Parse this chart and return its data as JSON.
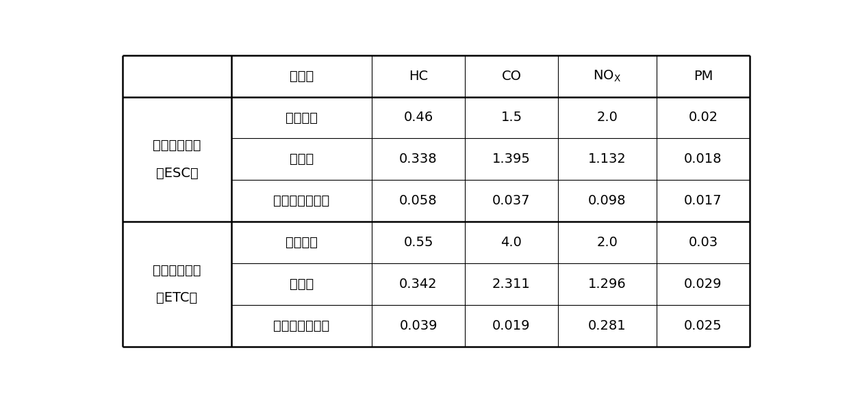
{
  "header_row": [
    "排放物",
    "HC",
    "CO",
    "NOₓ",
    "PM"
  ],
  "section1_label_line1": "稳态测试循环",
  "section1_label_line2": "（ESC）",
  "section2_label_line1": "瞬态检测循环",
  "section2_label_line2": "（ETC）",
  "rows": [
    [
      "标准限值",
      "0.46",
      "1.5",
      "2.0",
      "0.02"
    ],
    [
      "对比例",
      "0.338",
      "1.395",
      "1.132",
      "0.018"
    ],
    [
      "具体实施方式一",
      "0.058",
      "0.037",
      "0.098",
      "0.017"
    ],
    [
      "标准限值",
      "0.55",
      "4.0",
      "2.0",
      "0.03"
    ],
    [
      "对比例",
      "0.342",
      "2.311",
      "1.296",
      "0.029"
    ],
    [
      "具体实施方式一",
      "0.039",
      "0.019",
      "0.281",
      "0.025"
    ]
  ],
  "background_color": "#ffffff",
  "line_color": "#000000",
  "text_color": "#000000",
  "font_size": 14,
  "lw_thick": 1.8,
  "lw_thin": 0.8
}
